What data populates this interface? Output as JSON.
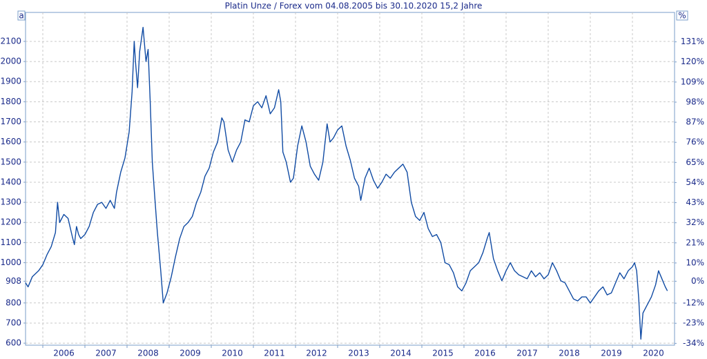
{
  "chart_data": {
    "type": "line",
    "title": "Platin Unze / Forex vom 04.08.2005 bis 30.10.2020 15,2 Jahre",
    "left_axis_label": "a",
    "right_axis_label": "%",
    "color": "#0f4aa3",
    "grid": true,
    "x": [
      2005.59,
      2005.65,
      2005.75,
      2005.9,
      2006.0,
      2006.1,
      2006.2,
      2006.3,
      2006.35,
      2006.4,
      2006.5,
      2006.6,
      2006.7,
      2006.75,
      2006.8,
      2006.85,
      2006.9,
      2007.0,
      2007.1,
      2007.2,
      2007.3,
      2007.4,
      2007.5,
      2007.6,
      2007.7,
      2007.75,
      2007.85,
      2007.95,
      2008.05,
      2008.12,
      2008.17,
      2008.2,
      2008.25,
      2008.3,
      2008.38,
      2008.45,
      2008.5,
      2008.55,
      2008.6,
      2008.65,
      2008.72,
      2008.8,
      2008.86,
      2008.95,
      2009.05,
      2009.15,
      2009.25,
      2009.35,
      2009.45,
      2009.55,
      2009.65,
      2009.75,
      2009.85,
      2009.95,
      2010.05,
      2010.15,
      2010.25,
      2010.3,
      2010.4,
      2010.5,
      2010.6,
      2010.7,
      2010.8,
      2010.9,
      2011.0,
      2011.1,
      2011.2,
      2011.3,
      2011.4,
      2011.5,
      2011.6,
      2011.65,
      2011.7,
      2011.78,
      2011.88,
      2011.95,
      2012.05,
      2012.15,
      2012.25,
      2012.35,
      2012.45,
      2012.55,
      2012.65,
      2012.75,
      2012.82,
      2012.9,
      2013.0,
      2013.1,
      2013.2,
      2013.3,
      2013.4,
      2013.5,
      2013.55,
      2013.65,
      2013.75,
      2013.85,
      2013.95,
      2014.05,
      2014.15,
      2014.25,
      2014.35,
      2014.45,
      2014.55,
      2014.65,
      2014.75,
      2014.85,
      2014.95,
      2015.05,
      2015.15,
      2015.25,
      2015.35,
      2015.45,
      2015.55,
      2015.65,
      2015.75,
      2015.85,
      2015.95,
      2016.05,
      2016.15,
      2016.25,
      2016.35,
      2016.45,
      2016.55,
      2016.6,
      2016.7,
      2016.8,
      2016.9,
      2017.0,
      2017.1,
      2017.2,
      2017.3,
      2017.4,
      2017.5,
      2017.6,
      2017.7,
      2017.8,
      2017.9,
      2018.0,
      2018.1,
      2018.2,
      2018.3,
      2018.4,
      2018.5,
      2018.6,
      2018.7,
      2018.8,
      2018.9,
      2019.0,
      2019.1,
      2019.2,
      2019.3,
      2019.4,
      2019.5,
      2019.6,
      2019.7,
      2019.8,
      2019.9,
      2020.0,
      2020.05,
      2020.1,
      2020.15,
      2020.2,
      2020.25,
      2020.35,
      2020.45,
      2020.55,
      2020.62,
      2020.7,
      2020.78,
      2020.83
    ],
    "values": [
      900,
      880,
      930,
      960,
      990,
      1040,
      1080,
      1150,
      1300,
      1200,
      1240,
      1220,
      1130,
      1090,
      1180,
      1140,
      1120,
      1140,
      1180,
      1250,
      1290,
      1300,
      1270,
      1310,
      1270,
      1350,
      1450,
      1520,
      1650,
      1850,
      2100,
      2000,
      1870,
      2050,
      2170,
      2000,
      2060,
      1800,
      1500,
      1350,
      1150,
      960,
      800,
      850,
      930,
      1030,
      1120,
      1180,
      1200,
      1230,
      1300,
      1350,
      1430,
      1470,
      1550,
      1600,
      1720,
      1700,
      1560,
      1500,
      1560,
      1600,
      1710,
      1700,
      1780,
      1800,
      1770,
      1830,
      1740,
      1770,
      1860,
      1800,
      1550,
      1500,
      1400,
      1420,
      1580,
      1680,
      1600,
      1480,
      1440,
      1410,
      1500,
      1690,
      1600,
      1620,
      1660,
      1680,
      1580,
      1510,
      1420,
      1380,
      1310,
      1420,
      1470,
      1410,
      1370,
      1400,
      1440,
      1420,
      1450,
      1470,
      1490,
      1450,
      1300,
      1230,
      1210,
      1250,
      1170,
      1130,
      1140,
      1100,
      1000,
      990,
      950,
      880,
      860,
      900,
      960,
      980,
      1000,
      1050,
      1120,
      1150,
      1020,
      960,
      910,
      960,
      1000,
      960,
      940,
      930,
      920,
      960,
      930,
      950,
      920,
      940,
      1000,
      960,
      910,
      900,
      860,
      820,
      810,
      830,
      830,
      800,
      830,
      860,
      880,
      840,
      850,
      900,
      950,
      920,
      960,
      980,
      1000,
      960,
      820,
      620,
      750,
      790,
      830,
      890,
      960,
      920,
      880,
      860
    ],
    "xlim": [
      2005.59,
      2021.0
    ],
    "xticks": [
      2006,
      2007,
      2008,
      2009,
      2010,
      2011,
      2012,
      2013,
      2014,
      2015,
      2016,
      2017,
      2018,
      2019,
      2020
    ],
    "ylim": [
      590,
      2244
    ],
    "yticks": [
      600,
      700,
      800,
      908,
      1000,
      1100,
      1200,
      1300,
      1400,
      1500,
      1600,
      1700,
      1800,
      1900,
      2000,
      2100
    ],
    "y2lim": [
      -35.0,
      147.1
    ],
    "y2ticks": [
      {
        "value": -34,
        "label": "-34%"
      },
      {
        "value": -23,
        "label": "-23%"
      },
      {
        "value": -12,
        "label": "-12%"
      },
      {
        "value": 0,
        "label": "0%"
      },
      {
        "value": 10,
        "label": "10%"
      },
      {
        "value": 21,
        "label": "21%"
      },
      {
        "value": 32,
        "label": "32%"
      },
      {
        "value": 43,
        "label": "43%"
      },
      {
        "value": 54,
        "label": "54%"
      },
      {
        "value": 65,
        "label": "65%"
      },
      {
        "value": 76,
        "label": "76%"
      },
      {
        "value": 87,
        "label": "87%"
      },
      {
        "value": 98,
        "label": "98%"
      },
      {
        "value": 109,
        "label": "109%"
      },
      {
        "value": 120,
        "label": "120%"
      },
      {
        "value": 131,
        "label": "131%"
      }
    ]
  }
}
